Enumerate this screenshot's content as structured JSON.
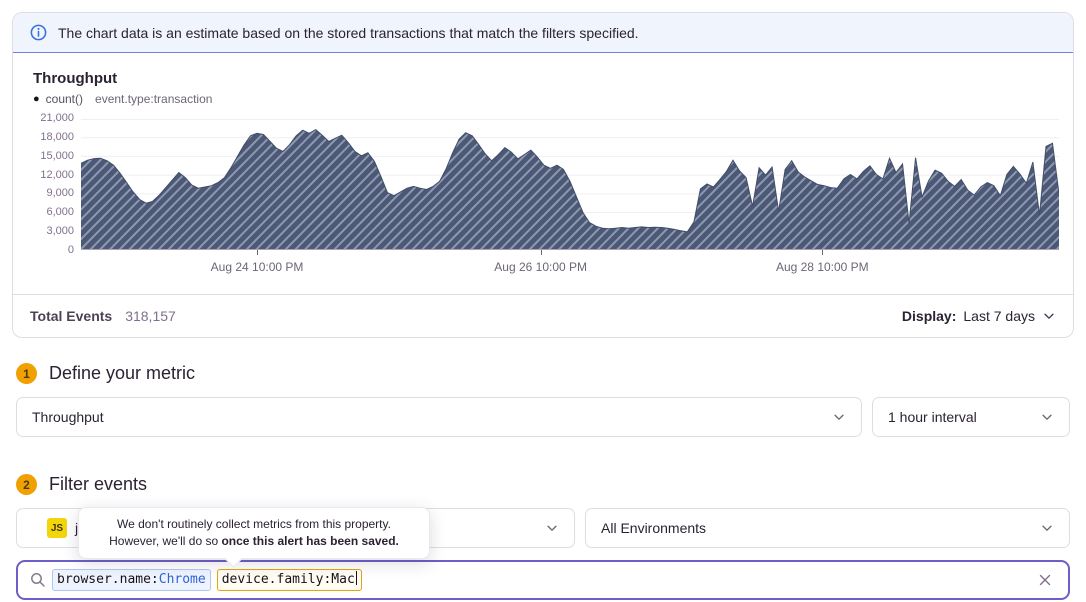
{
  "banner": {
    "text": "The chart data is an estimate based on the stored transactions that match the filters specified."
  },
  "chart_panel": {
    "title": "Throughput",
    "legend": {
      "marker": "●",
      "aggregate": "count()",
      "query": "event.type:transaction"
    },
    "footer": {
      "total_events_label": "Total Events",
      "total_events_value": "318,157",
      "display_label": "Display:",
      "display_value": "Last 7 days"
    }
  },
  "chart_data": {
    "type": "area",
    "title": "Throughput",
    "series_label": "count() event.type:transaction",
    "unit": "transactions per 1 hour interval",
    "grid": "horizontal",
    "legend_position": "top-left",
    "ylim": [
      0,
      21000
    ],
    "ytick_values": [
      0,
      3000,
      6000,
      9000,
      12000,
      15000,
      18000,
      21000
    ],
    "ytick_labels": [
      "21,000",
      "18,000",
      "15,000",
      "12,000",
      "9,000",
      "6,000",
      "3,000",
      "0"
    ],
    "xticks": [
      {
        "label": "Aug 24 10:00 PM",
        "pos": 0.18
      },
      {
        "label": "Aug 26 10:00 PM",
        "pos": 0.47
      },
      {
        "label": "Aug 28 10:00 PM",
        "pos": 0.758
      }
    ],
    "area_color": "#4b5876",
    "hatch_color": "#8e99af",
    "line_color": "#414d69",
    "values": [
      13900,
      14400,
      14650,
      14700,
      14300,
      13600,
      12300,
      10800,
      9300,
      8100,
      7500,
      7800,
      8800,
      10000,
      11200,
      12400,
      11600,
      10400,
      9900,
      10100,
      10300,
      10800,
      11600,
      13200,
      15000,
      16800,
      18300,
      18700,
      18500,
      17400,
      16300,
      15800,
      16900,
      18300,
      19200,
      18700,
      19300,
      18400,
      17400,
      17900,
      18400,
      17200,
      15800,
      15100,
      15600,
      14200,
      11800,
      9200,
      8700,
      9300,
      9900,
      10200,
      9900,
      9700,
      10200,
      11000,
      13000,
      15600,
      17800,
      18800,
      18300,
      16900,
      15400,
      14300,
      15300,
      16400,
      15700,
      14600,
      15300,
      16000,
      14900,
      13600,
      13100,
      13600,
      12900,
      11000,
      8500,
      6000,
      4400,
      3800,
      3500,
      3400,
      3500,
      3600,
      3500,
      3600,
      3700,
      3600,
      3650,
      3600,
      3500,
      3300,
      3100,
      2900,
      4500,
      9800,
      10600,
      10100,
      11300,
      12600,
      14400,
      12700,
      11600,
      7000,
      13200,
      12000,
      13300,
      6200,
      12900,
      14300,
      12500,
      11700,
      11100,
      10500,
      10300,
      10000,
      9900,
      11400,
      12100,
      11400,
      12600,
      13500,
      12100,
      11400,
      14700,
      12400,
      13800,
      4300,
      14800,
      8500,
      11100,
      12800,
      12300,
      11000,
      10200,
      11300,
      9600,
      8800,
      10100,
      10800,
      10300,
      8700,
      12100,
      13400,
      12200,
      10700,
      14100,
      5600,
      16600,
      17100,
      9000
    ]
  },
  "step1": {
    "number": "1",
    "title": "Define your metric",
    "metric_value": "Throughput",
    "interval_value": "1 hour interval"
  },
  "step2": {
    "number": "2",
    "title": "Filter events",
    "project_icon": "JS",
    "project_value": "j",
    "environment_value": "All Environments"
  },
  "tooltip": {
    "line1": "We don't routinely collect metrics from this property.",
    "line2_regular": "However, we'll do so ",
    "line2_bold": "once this alert has been saved."
  },
  "search": {
    "tokens": [
      {
        "key": "browser.name:",
        "value": "Chrome"
      },
      {
        "key": "device.family:",
        "value": "Mac"
      }
    ]
  },
  "colors": {
    "accent_purple": "#6c5fc7",
    "info_blue": "#3b72da",
    "banner_bg": "#f0f4fd",
    "badge_amber": "#f0a000",
    "js_yellow": "#f2d60b",
    "chart_fill": "#4b5876",
    "token_blue_border": "#afc6f4",
    "token_amber_border": "#dfa511"
  }
}
